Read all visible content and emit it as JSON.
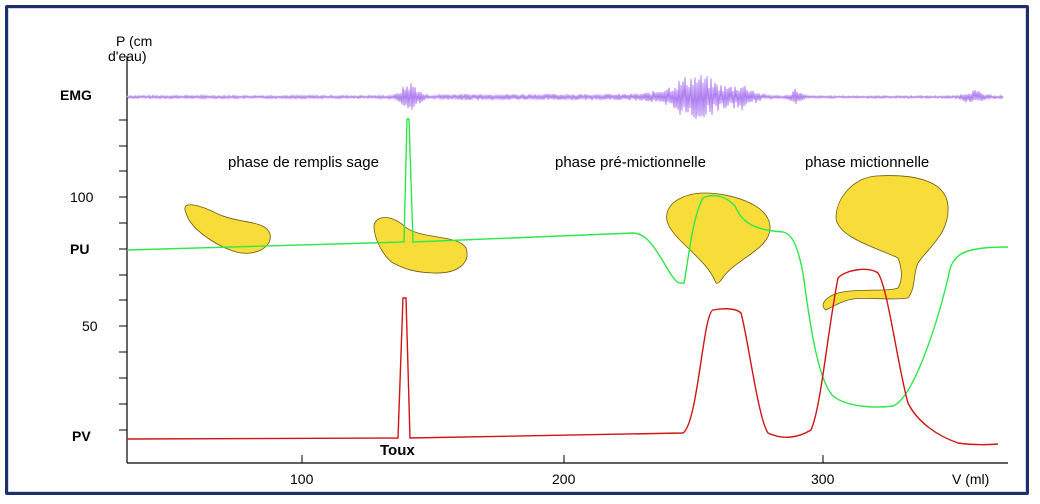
{
  "y_axis": {
    "unit_line1": "P (cm",
    "unit_line2": "d'eau)",
    "tick_100": "100",
    "tick_50": "50"
  },
  "row_labels": {
    "emg": "EMG",
    "pu": "PU",
    "pv": "PV"
  },
  "x_axis": {
    "tick_100": "100",
    "tick_200": "200",
    "tick_300": "300",
    "unit": "V (ml)"
  },
  "phases": {
    "filling": "phase de remplis sage",
    "pre_micturition": "phase pré-mictionnelle",
    "micturition": "phase mictionnelle"
  },
  "annotations": {
    "cough": "Toux"
  },
  "colors": {
    "emg": "#b07ef0",
    "pu": "#2ee84a",
    "pv": "#d11414",
    "bladder_fill": "#f7dc3a",
    "bladder_stroke": "#6a5a10",
    "frame": "#1f2f6b"
  }
}
